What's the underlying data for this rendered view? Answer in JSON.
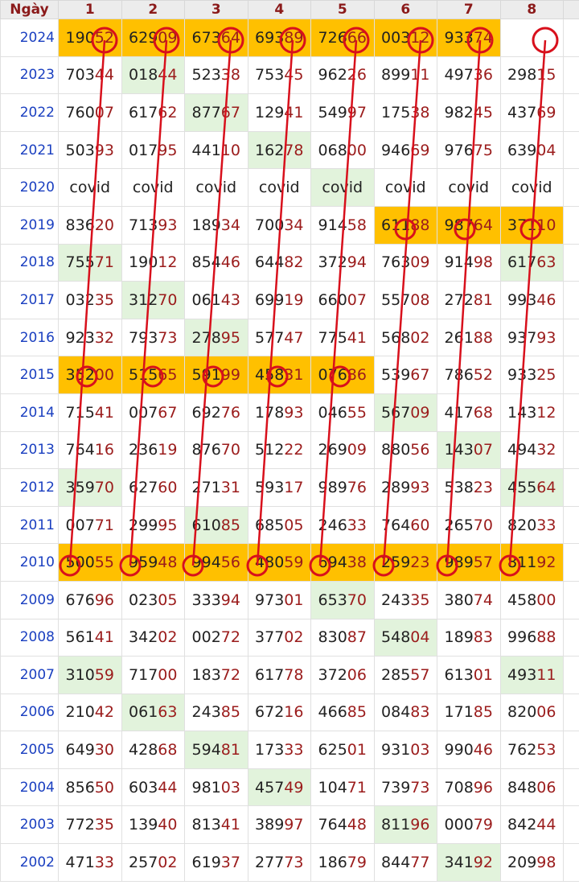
{
  "table": {
    "header": [
      "Ngày",
      "1",
      "2",
      "3",
      "4",
      "5",
      "6",
      "7",
      "8"
    ],
    "rows": [
      {
        "year": "2024",
        "cells": [
          [
            "190",
            "52"
          ],
          [
            "629",
            "09"
          ],
          [
            "673",
            "64"
          ],
          [
            "693",
            "89"
          ],
          [
            "726",
            "66"
          ],
          [
            "003",
            "12"
          ],
          [
            "933",
            "74"
          ],
          []
        ]
      },
      {
        "year": "2023",
        "cells": [
          [
            "703",
            "44"
          ],
          [
            "018",
            "44"
          ],
          [
            "523",
            "38"
          ],
          [
            "753",
            "45"
          ],
          [
            "962",
            "26"
          ],
          [
            "899",
            "11"
          ],
          [
            "497",
            "36"
          ],
          [
            "298",
            "15"
          ]
        ]
      },
      {
        "year": "2022",
        "cells": [
          [
            "760",
            "07"
          ],
          [
            "617",
            "62"
          ],
          [
            "877",
            "67"
          ],
          [
            "129",
            "41"
          ],
          [
            "549",
            "97"
          ],
          [
            "175",
            "38"
          ],
          [
            "982",
            "45"
          ],
          [
            "437",
            "69"
          ]
        ]
      },
      {
        "year": "2021",
        "cells": [
          [
            "503",
            "93"
          ],
          [
            "017",
            "95"
          ],
          [
            "441",
            "10"
          ],
          [
            "162",
            "78"
          ],
          [
            "068",
            "00"
          ],
          [
            "946",
            "69"
          ],
          [
            "976",
            "75"
          ],
          [
            "639",
            "04"
          ]
        ]
      },
      {
        "year": "2020",
        "cells": [
          [
            "covid"
          ],
          [
            "covid"
          ],
          [
            "covid"
          ],
          [
            "covid"
          ],
          [
            "covid"
          ],
          [
            "covid"
          ],
          [
            "covid"
          ],
          [
            "covid"
          ]
        ]
      },
      {
        "year": "2019",
        "cells": [
          [
            "836",
            "20"
          ],
          [
            "713",
            "93"
          ],
          [
            "189",
            "34"
          ],
          [
            "700",
            "34"
          ],
          [
            "914",
            "58"
          ],
          [
            "611",
            "88"
          ],
          [
            "987",
            "64"
          ],
          [
            "371",
            "10"
          ]
        ]
      },
      {
        "year": "2018",
        "cells": [
          [
            "755",
            "71"
          ],
          [
            "190",
            "12"
          ],
          [
            "854",
            "46"
          ],
          [
            "644",
            "82"
          ],
          [
            "372",
            "94"
          ],
          [
            "763",
            "09"
          ],
          [
            "914",
            "98"
          ],
          [
            "617",
            "63"
          ]
        ]
      },
      {
        "year": "2017",
        "cells": [
          [
            "032",
            "35"
          ],
          [
            "312",
            "70"
          ],
          [
            "061",
            "43"
          ],
          [
            "699",
            "19"
          ],
          [
            "660",
            "07"
          ],
          [
            "557",
            "08"
          ],
          [
            "272",
            "81"
          ],
          [
            "993",
            "46"
          ]
        ]
      },
      {
        "year": "2016",
        "cells": [
          [
            "923",
            "32"
          ],
          [
            "793",
            "73"
          ],
          [
            "278",
            "95"
          ],
          [
            "577",
            "47"
          ],
          [
            "775",
            "41"
          ],
          [
            "568",
            "02"
          ],
          [
            "261",
            "88"
          ],
          [
            "937",
            "93"
          ]
        ]
      },
      {
        "year": "2015",
        "cells": [
          [
            "352",
            "00"
          ],
          [
            "515",
            "65"
          ],
          [
            "591",
            "99"
          ],
          [
            "458",
            "31"
          ],
          [
            "076",
            "86"
          ],
          [
            "539",
            "67"
          ],
          [
            "786",
            "52"
          ],
          [
            "933",
            "25"
          ]
        ]
      },
      {
        "year": "2014",
        "cells": [
          [
            "715",
            "41"
          ],
          [
            "007",
            "67"
          ],
          [
            "692",
            "76"
          ],
          [
            "178",
            "93"
          ],
          [
            "046",
            "55"
          ],
          [
            "567",
            "09"
          ],
          [
            "417",
            "68"
          ],
          [
            "143",
            "12"
          ]
        ]
      },
      {
        "year": "2013",
        "cells": [
          [
            "764",
            "16"
          ],
          [
            "236",
            "19"
          ],
          [
            "876",
            "70"
          ],
          [
            "512",
            "22"
          ],
          [
            "269",
            "09"
          ],
          [
            "880",
            "56"
          ],
          [
            "143",
            "07"
          ],
          [
            "494",
            "32"
          ]
        ]
      },
      {
        "year": "2012",
        "cells": [
          [
            "359",
            "70"
          ],
          [
            "627",
            "60"
          ],
          [
            "271",
            "31"
          ],
          [
            "593",
            "17"
          ],
          [
            "989",
            "76"
          ],
          [
            "289",
            "93"
          ],
          [
            "538",
            "23"
          ],
          [
            "455",
            "64"
          ]
        ]
      },
      {
        "year": "2011",
        "cells": [
          [
            "007",
            "71"
          ],
          [
            "299",
            "95"
          ],
          [
            "610",
            "85"
          ],
          [
            "685",
            "05"
          ],
          [
            "246",
            "33"
          ],
          [
            "764",
            "60"
          ],
          [
            "265",
            "70"
          ],
          [
            "820",
            "33"
          ]
        ]
      },
      {
        "year": "2010",
        "cells": [
          [
            "500",
            "55"
          ],
          [
            "959",
            "48"
          ],
          [
            "994",
            "56"
          ],
          [
            "480",
            "59"
          ],
          [
            "694",
            "38"
          ],
          [
            "259",
            "23"
          ],
          [
            "989",
            "57"
          ],
          [
            "811",
            "92"
          ]
        ]
      },
      {
        "year": "2009",
        "cells": [
          [
            "676",
            "96"
          ],
          [
            "023",
            "05"
          ],
          [
            "333",
            "94"
          ],
          [
            "973",
            "01"
          ],
          [
            "653",
            "70"
          ],
          [
            "243",
            "35"
          ],
          [
            "380",
            "74"
          ],
          [
            "458",
            "00"
          ]
        ]
      },
      {
        "year": "2008",
        "cells": [
          [
            "561",
            "41"
          ],
          [
            "342",
            "02"
          ],
          [
            "002",
            "72"
          ],
          [
            "377",
            "02"
          ],
          [
            "830",
            "87"
          ],
          [
            "548",
            "04"
          ],
          [
            "189",
            "83"
          ],
          [
            "996",
            "88"
          ]
        ]
      },
      {
        "year": "2007",
        "cells": [
          [
            "310",
            "59"
          ],
          [
            "717",
            "00"
          ],
          [
            "183",
            "72"
          ],
          [
            "617",
            "78"
          ],
          [
            "372",
            "06"
          ],
          [
            "285",
            "57"
          ],
          [
            "613",
            "01"
          ],
          [
            "493",
            "11"
          ]
        ]
      },
      {
        "year": "2006",
        "cells": [
          [
            "210",
            "42"
          ],
          [
            "061",
            "63"
          ],
          [
            "243",
            "85"
          ],
          [
            "672",
            "16"
          ],
          [
            "466",
            "85"
          ],
          [
            "084",
            "83"
          ],
          [
            "171",
            "85"
          ],
          [
            "820",
            "06"
          ]
        ]
      },
      {
        "year": "2005",
        "cells": [
          [
            "649",
            "30"
          ],
          [
            "428",
            "68"
          ],
          [
            "594",
            "81"
          ],
          [
            "173",
            "33"
          ],
          [
            "625",
            "01"
          ],
          [
            "931",
            "03"
          ],
          [
            "990",
            "46"
          ],
          [
            "762",
            "53"
          ]
        ]
      },
      {
        "year": "2004",
        "cells": [
          [
            "856",
            "50"
          ],
          [
            "603",
            "44"
          ],
          [
            "981",
            "03"
          ],
          [
            "457",
            "49"
          ],
          [
            "104",
            "71"
          ],
          [
            "739",
            "73"
          ],
          [
            "708",
            "96"
          ],
          [
            "848",
            "06"
          ]
        ]
      },
      {
        "year": "2003",
        "cells": [
          [
            "772",
            "35"
          ],
          [
            "139",
            "40"
          ],
          [
            "813",
            "41"
          ],
          [
            "389",
            "97"
          ],
          [
            "764",
            "48"
          ],
          [
            "811",
            "96"
          ],
          [
            "000",
            "79"
          ],
          [
            "842",
            "44"
          ]
        ]
      },
      {
        "year": "2002",
        "cells": [
          [
            "471",
            "33"
          ],
          [
            "257",
            "02"
          ],
          [
            "619",
            "37"
          ],
          [
            "277",
            "73"
          ],
          [
            "186",
            "79"
          ],
          [
            "844",
            "77"
          ],
          [
            "341",
            "92"
          ],
          [
            "209",
            "98"
          ]
        ]
      }
    ]
  }
}
